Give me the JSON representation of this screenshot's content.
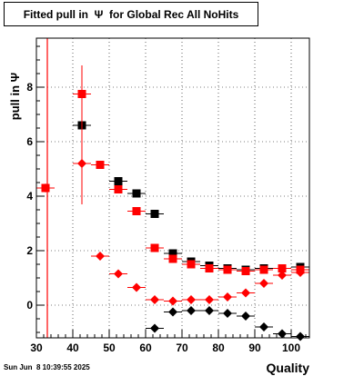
{
  "title": "Fitted pull in  Ψ  for Global Rec All NoHits",
  "timestamp": "Sun Jun  8 10:39:55 2025",
  "chart_data": {
    "type": "scatter",
    "title": "Fitted pull in  Ψ  for Global Rec All NoHits",
    "xlabel": "Quality",
    "ylabel": "pull in  Ψ",
    "xlim": [
      30,
      105
    ],
    "ylim": [
      -1.2,
      9.8
    ],
    "grid": true,
    "x_ticks": [
      30,
      40,
      50,
      60,
      70,
      80,
      90,
      100
    ],
    "y_ticks": [
      0,
      2,
      4,
      6,
      8
    ],
    "series": [
      {
        "marker": "square",
        "color": "#000000",
        "points": [
          {
            "x": 32.5,
            "y": 4.3,
            "xerr": 2.5,
            "yerr": 0
          },
          {
            "x": 42.5,
            "y": 6.6,
            "xerr": 2.5,
            "yerr": 0
          },
          {
            "x": 47.5,
            "y": 5.15,
            "xerr": 2.5,
            "yerr": 0
          },
          {
            "x": 52.5,
            "y": 4.55,
            "xerr": 2.5,
            "yerr": 0
          },
          {
            "x": 57.5,
            "y": 4.1,
            "xerr": 2.5,
            "yerr": 0
          },
          {
            "x": 62.5,
            "y": 3.35,
            "xerr": 2.5,
            "yerr": 0
          },
          {
            "x": 67.5,
            "y": 1.9,
            "xerr": 2.5,
            "yerr": 0
          },
          {
            "x": 72.5,
            "y": 1.6,
            "xerr": 2.5,
            "yerr": 0
          },
          {
            "x": 77.5,
            "y": 1.45,
            "xerr": 2.5,
            "yerr": 0
          },
          {
            "x": 82.5,
            "y": 1.35,
            "xerr": 2.5,
            "yerr": 0
          },
          {
            "x": 87.5,
            "y": 1.3,
            "xerr": 2.5,
            "yerr": 0
          },
          {
            "x": 92.5,
            "y": 1.35,
            "xerr": 2.5,
            "yerr": 0
          },
          {
            "x": 97.5,
            "y": 1.35,
            "xerr": 2.5,
            "yerr": 0
          },
          {
            "x": 102.5,
            "y": 1.4,
            "xerr": 2.5,
            "yerr": 0
          }
        ]
      },
      {
        "marker": "square",
        "color": "#ff0000",
        "points": [
          {
            "x": 32.5,
            "y": 4.3,
            "xerr": 2.5,
            "yerr": 0
          },
          {
            "x": 42.5,
            "y": 7.75,
            "xerr": 2.5,
            "yerr": 1.05
          },
          {
            "x": 47.5,
            "y": 5.15,
            "xerr": 2.5,
            "yerr": 0
          },
          {
            "x": 52.5,
            "y": 4.25,
            "xerr": 2.5,
            "yerr": 0
          },
          {
            "x": 57.5,
            "y": 3.45,
            "xerr": 2.5,
            "yerr": 0
          },
          {
            "x": 62.5,
            "y": 2.1,
            "xerr": 2.5,
            "yerr": 0
          },
          {
            "x": 67.5,
            "y": 1.7,
            "xerr": 2.5,
            "yerr": 0
          },
          {
            "x": 72.5,
            "y": 1.5,
            "xerr": 2.5,
            "yerr": 0
          },
          {
            "x": 77.5,
            "y": 1.35,
            "xerr": 2.5,
            "yerr": 0
          },
          {
            "x": 82.5,
            "y": 1.3,
            "xerr": 2.5,
            "yerr": 0
          },
          {
            "x": 87.5,
            "y": 1.25,
            "xerr": 2.5,
            "yerr": 0
          },
          {
            "x": 92.5,
            "y": 1.3,
            "xerr": 2.5,
            "yerr": 0
          },
          {
            "x": 97.5,
            "y": 1.35,
            "xerr": 2.5,
            "yerr": 0
          },
          {
            "x": 102.5,
            "y": 1.3,
            "xerr": 2.5,
            "yerr": 0
          }
        ]
      },
      {
        "marker": "diamond",
        "color": "#000000",
        "points": [
          {
            "x": 62.5,
            "y": -0.85,
            "xerr": 2.5,
            "yerr": 0
          },
          {
            "x": 67.5,
            "y": -0.25,
            "xerr": 2.5,
            "yerr": 0
          },
          {
            "x": 72.5,
            "y": -0.2,
            "xerr": 2.5,
            "yerr": 0
          },
          {
            "x": 77.5,
            "y": -0.2,
            "xerr": 2.5,
            "yerr": 0
          },
          {
            "x": 82.5,
            "y": -0.3,
            "xerr": 2.5,
            "yerr": 0
          },
          {
            "x": 87.5,
            "y": -0.4,
            "xerr": 2.5,
            "yerr": 0
          },
          {
            "x": 92.5,
            "y": -0.8,
            "xerr": 2.5,
            "yerr": 0
          },
          {
            "x": 97.5,
            "y": -1.05,
            "xerr": 2.5,
            "yerr": 0
          },
          {
            "x": 102.5,
            "y": -1.15,
            "xerr": 2.5,
            "yerr": 0
          }
        ]
      },
      {
        "marker": "diamond",
        "color": "#ff0000",
        "points": [
          {
            "x": 32.5,
            "y": 4.3,
            "xerr": 2.5,
            "yerr": 0
          },
          {
            "x": 42.5,
            "y": 5.2,
            "xerr": 2.5,
            "yerr": 1.5
          },
          {
            "x": 47.5,
            "y": 1.8,
            "xerr": 2.5,
            "yerr": 0
          },
          {
            "x": 52.5,
            "y": 1.15,
            "xerr": 2.5,
            "yerr": 0
          },
          {
            "x": 57.5,
            "y": 0.65,
            "xerr": 2.5,
            "yerr": 0
          },
          {
            "x": 62.5,
            "y": 0.2,
            "xerr": 2.5,
            "yerr": 0
          },
          {
            "x": 67.5,
            "y": 0.15,
            "xerr": 2.5,
            "yerr": 0
          },
          {
            "x": 72.5,
            "y": 0.2,
            "xerr": 2.5,
            "yerr": 0
          },
          {
            "x": 77.5,
            "y": 0.2,
            "xerr": 2.5,
            "yerr": 0
          },
          {
            "x": 82.5,
            "y": 0.3,
            "xerr": 2.5,
            "yerr": 0
          },
          {
            "x": 87.5,
            "y": 0.45,
            "xerr": 2.5,
            "yerr": 0
          },
          {
            "x": 92.5,
            "y": 0.8,
            "xerr": 2.5,
            "yerr": 0
          },
          {
            "x": 97.5,
            "y": 1.1,
            "xerr": 2.5,
            "yerr": 0
          },
          {
            "x": 102.5,
            "y": 1.2,
            "xerr": 2.5,
            "yerr": 0
          }
        ]
      }
    ],
    "vertical_line": {
      "x": 33.0,
      "color": "#ff0000"
    }
  }
}
